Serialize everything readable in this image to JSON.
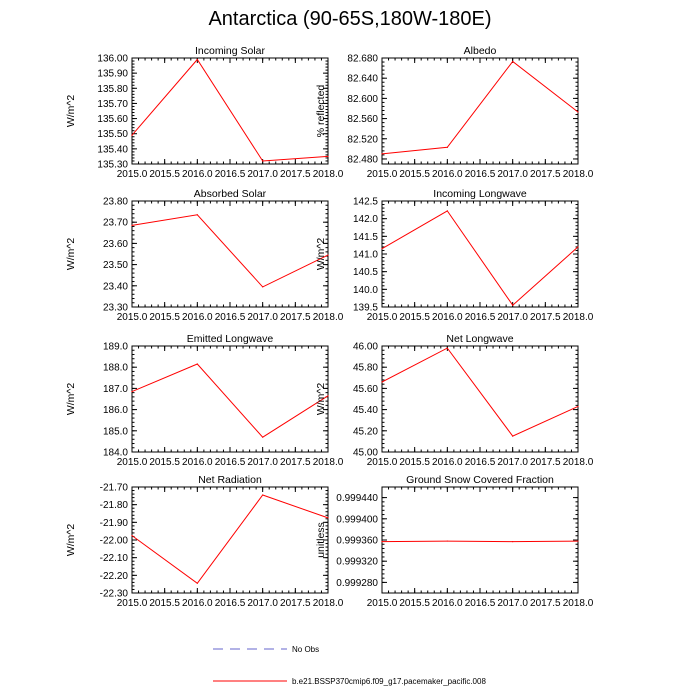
{
  "title": "Antarctica (90-65S,180W-180E)",
  "colors": {
    "model": "#ff0000",
    "obs": "#6666cc",
    "axis": "#000000"
  },
  "legend": [
    {
      "label": "No Obs",
      "style": "dashed",
      "color": "#6666cc"
    },
    {
      "label": "b.e21.BSSP370cmip6.f09_g17.pacemaker_pacific.008",
      "style": "solid",
      "color": "#ff0000"
    }
  ],
  "chart_data": [
    {
      "type": "line",
      "title": "Incoming Solar",
      "ylabel": "W/m^2",
      "x": [
        2015.0,
        2016.0,
        2017.0,
        2018.0
      ],
      "xlim": [
        2015.0,
        2018.0
      ],
      "xticks": [
        "2015.0",
        "2015.5",
        "2016.0",
        "2016.5",
        "2017.0",
        "2017.5",
        "2018.0"
      ],
      "ylim": [
        135.3,
        136.0
      ],
      "yticks": [
        "135.30",
        "135.40",
        "135.50",
        "135.60",
        "135.70",
        "135.80",
        "135.90",
        "136.00"
      ],
      "series": [
        {
          "values": [
            135.49,
            135.99,
            135.32,
            135.35
          ]
        }
      ]
    },
    {
      "type": "line",
      "title": "Albedo",
      "ylabel": "% reflected",
      "x": [
        2015.0,
        2016.0,
        2017.0,
        2018.0
      ],
      "xlim": [
        2015.0,
        2018.0
      ],
      "xticks": [
        "2015.0",
        "2015.5",
        "2016.0",
        "2016.5",
        "2017.0",
        "2017.5",
        "2018.0"
      ],
      "ylim": [
        82.47,
        82.68
      ],
      "yticks": [
        "82.480",
        "82.520",
        "82.560",
        "82.600",
        "82.640",
        "82.680"
      ],
      "series": [
        {
          "values": [
            82.49,
            82.503,
            82.673,
            82.573
          ]
        }
      ]
    },
    {
      "type": "line",
      "title": "Absorbed Solar",
      "ylabel": "W/m^2",
      "x": [
        2015.0,
        2016.0,
        2017.0,
        2018.0
      ],
      "xlim": [
        2015.0,
        2018.0
      ],
      "xticks": [
        "2015.0",
        "2015.5",
        "2016.0",
        "2016.5",
        "2017.0",
        "2017.5",
        "2018.0"
      ],
      "ylim": [
        23.3,
        23.8
      ],
      "yticks": [
        "23.30",
        "23.40",
        "23.50",
        "23.60",
        "23.70",
        "23.80"
      ],
      "series": [
        {
          "values": [
            23.685,
            23.735,
            23.395,
            23.545
          ]
        }
      ]
    },
    {
      "type": "line",
      "title": "Incoming Longwave",
      "ylabel": "W/m^2",
      "x": [
        2015.0,
        2016.0,
        2017.0,
        2018.0
      ],
      "xlim": [
        2015.0,
        2018.0
      ],
      "xticks": [
        "2015.0",
        "2015.5",
        "2016.0",
        "2016.5",
        "2017.0",
        "2017.5",
        "2018.0"
      ],
      "ylim": [
        139.5,
        142.5
      ],
      "yticks": [
        "139.5",
        "140.0",
        "140.5",
        "141.0",
        "141.5",
        "142.0",
        "142.5"
      ],
      "series": [
        {
          "values": [
            141.15,
            142.22,
            139.55,
            141.2
          ]
        }
      ]
    },
    {
      "type": "line",
      "title": "Emitted Longwave",
      "ylabel": "W/m^2",
      "x": [
        2015.0,
        2016.0,
        2017.0,
        2018.0
      ],
      "xlim": [
        2015.0,
        2018.0
      ],
      "xticks": [
        "2015.0",
        "2015.5",
        "2016.0",
        "2016.5",
        "2017.0",
        "2017.5",
        "2018.0"
      ],
      "ylim": [
        184.0,
        189.0
      ],
      "yticks": [
        "184.0",
        "185.0",
        "186.0",
        "187.0",
        "188.0",
        "189.0"
      ],
      "series": [
        {
          "values": [
            186.85,
            188.15,
            184.7,
            186.65
          ]
        }
      ]
    },
    {
      "type": "line",
      "title": "Net Longwave",
      "ylabel": "W/m^2",
      "x": [
        2015.0,
        2016.0,
        2017.0,
        2018.0
      ],
      "xlim": [
        2015.0,
        2018.0
      ],
      "xticks": [
        "2015.0",
        "2015.5",
        "2016.0",
        "2016.5",
        "2017.0",
        "2017.5",
        "2018.0"
      ],
      "ylim": [
        45.0,
        46.0
      ],
      "yticks": [
        "45.00",
        "45.20",
        "45.40",
        "45.60",
        "45.80",
        "46.00"
      ],
      "series": [
        {
          "values": [
            45.66,
            45.98,
            45.15,
            45.43
          ]
        }
      ]
    },
    {
      "type": "line",
      "title": "Net Radiation",
      "ylabel": "W/m^2",
      "x": [
        2015.0,
        2016.0,
        2017.0,
        2018.0
      ],
      "xlim": [
        2015.0,
        2018.0
      ],
      "xticks": [
        "2015.0",
        "2015.5",
        "2016.0",
        "2016.5",
        "2017.0",
        "2017.5",
        "2018.0"
      ],
      "ylim": [
        -22.3,
        -21.7
      ],
      "yticks": [
        "-22.30",
        "-22.20",
        "-22.10",
        "-22.00",
        "-21.90",
        "-21.80",
        "-21.70"
      ],
      "series": [
        {
          "values": [
            -21.975,
            -22.245,
            -21.745,
            -21.875
          ]
        }
      ]
    },
    {
      "type": "line",
      "title": "Ground Snow Covered Fraction",
      "ylabel": "unitless",
      "x": [
        2015.0,
        2016.0,
        2017.0,
        2018.0
      ],
      "xlim": [
        2015.0,
        2018.0
      ],
      "xticks": [
        "2015.0",
        "2015.5",
        "2016.0",
        "2016.5",
        "2017.0",
        "2017.5",
        "2018.0"
      ],
      "ylim": [
        0.99926,
        0.99946
      ],
      "yticks": [
        "0.999280",
        "0.999320",
        "0.999360",
        "0.999400",
        "0.999440"
      ],
      "series": [
        {
          "values": [
            0.999357,
            0.999358,
            0.999357,
            0.999358
          ]
        }
      ]
    }
  ]
}
